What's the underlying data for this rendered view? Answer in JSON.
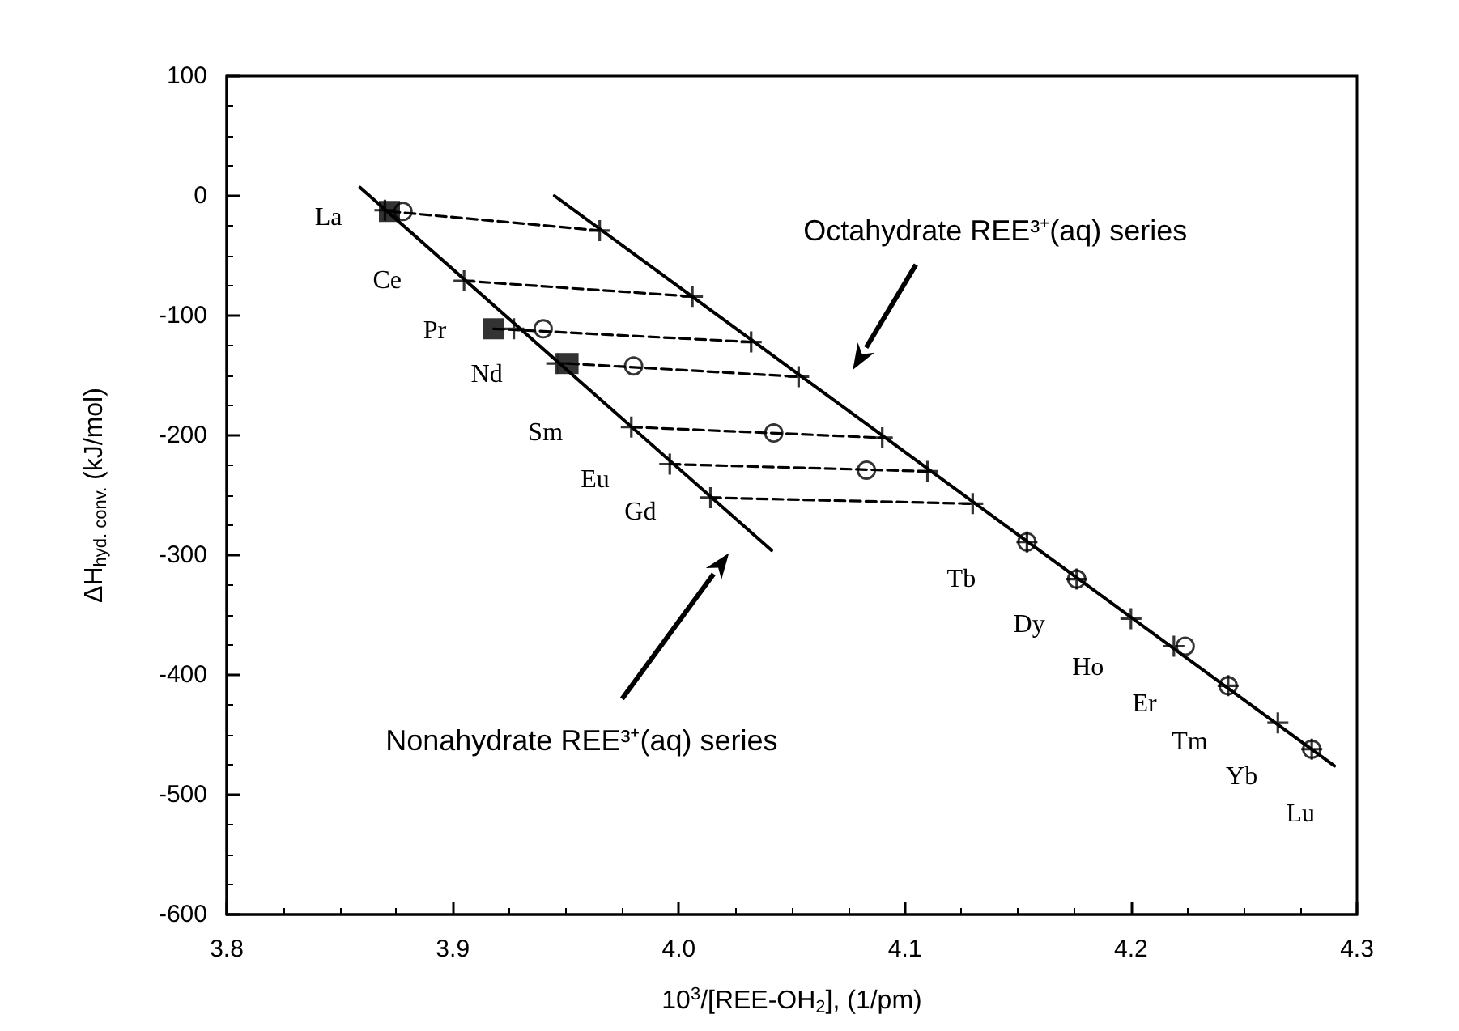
{
  "chart_data": {
    "type": "scatter",
    "xlabel": "10$^{3}$/[REE-OH$_{2}$], (1/pm)",
    "ylabel": "ΔH$_{hyd. conv.}$ (kJ/mol)",
    "xlim": [
      3.8,
      4.3
    ],
    "xticks": [
      3.8,
      3.9,
      {
        "value": 4,
        "label": "4.0"
      },
      4.1,
      4.2,
      4.3
    ],
    "ylim": [
      -600,
      100
    ],
    "yticks": [
      -600,
      -500,
      -400,
      -300,
      -200,
      -100,
      0,
      100
    ],
    "grid": false,
    "series": [
      {
        "type": "line",
        "color": "#000000",
        "marker": "none",
        "line_style": "solid",
        "x": [
          3.859,
          4.041
        ],
        "values": [
          7,
          -296
        ]
      },
      {
        "type": "line",
        "color": "#000000",
        "marker": "none",
        "line_style": "solid",
        "x": [
          3.945,
          4.29
        ],
        "values": [
          0,
          -476
        ]
      },
      {
        "type": "line",
        "color": "#000000",
        "marker": "none",
        "line_style": "dashed",
        "x": [
          3.872,
          3.965
        ],
        "values": [
          -13,
          -29
        ]
      },
      {
        "type": "line",
        "color": "#000000",
        "marker": "none",
        "line_style": "dashed",
        "x": [
          3.905,
          4.006
        ],
        "values": [
          -71,
          -84
        ]
      },
      {
        "type": "line",
        "color": "#000000",
        "marker": "none",
        "line_style": "dashed",
        "x": [
          3.918,
          4.032
        ],
        "values": [
          -111,
          -122
        ]
      },
      {
        "type": "line",
        "color": "#000000",
        "marker": "none",
        "line_style": "dashed",
        "x": [
          3.951,
          4.053
        ],
        "values": [
          -140,
          -151
        ]
      },
      {
        "type": "line",
        "color": "#000000",
        "marker": "none",
        "line_style": "dashed",
        "x": [
          3.979,
          4.09
        ],
        "values": [
          -193,
          -202
        ]
      },
      {
        "type": "line",
        "color": "#000000",
        "marker": "none",
        "line_style": "dashed",
        "x": [
          3.996,
          4.11
        ],
        "values": [
          -224,
          -230
        ]
      },
      {
        "type": "line",
        "color": "#000000",
        "marker": "none",
        "line_style": "dashed",
        "x": [
          4.014,
          4.13
        ],
        "values": [
          -252,
          -257
        ]
      },
      {
        "color": "#000000",
        "marker": "cross",
        "x": [
          3.87,
          3.905,
          3.927,
          3.946,
          3.979,
          3.996,
          4.014
        ],
        "values": [
          -12,
          -71,
          -111,
          -140,
          -193,
          -224,
          -252
        ]
      },
      {
        "color": "#000000",
        "marker": "cross",
        "x": [
          3.965,
          4.006,
          4.032,
          4.053,
          4.09,
          4.11,
          4.13,
          4.154,
          4.176,
          4.2,
          4.219,
          4.243,
          4.265,
          4.28
        ],
        "values": [
          -29,
          -84,
          -122,
          -151,
          -202,
          -230,
          -257,
          -289,
          -320,
          -353,
          -376,
          -409,
          -440,
          -462
        ]
      },
      {
        "color": "#000000",
        "marker": "circle",
        "x": [
          3.878,
          3.94,
          3.98,
          4.042,
          4.083,
          4.154,
          4.176,
          4.224,
          4.243,
          4.28
        ],
        "values": [
          -13,
          -111,
          -142,
          -198,
          -229,
          -289,
          -320,
          -376,
          -409,
          -462
        ]
      },
      {
        "color": "#000000",
        "marker": "square",
        "x": [
          3.872,
          3.918,
          3.951
        ],
        "values": [
          -13,
          -111,
          -140
        ]
      }
    ],
    "annotations": [
      "La",
      "Ce",
      "Pr",
      "Nd",
      "Sm",
      "Eu",
      "Gd",
      "Tb",
      "Dy",
      "Ho",
      "Er",
      "Tm",
      "Yb",
      "Lu",
      "Octahydrate REE³⁺(aq) series",
      "Nonahydrate REE³⁺(aq) series"
    ]
  }
}
